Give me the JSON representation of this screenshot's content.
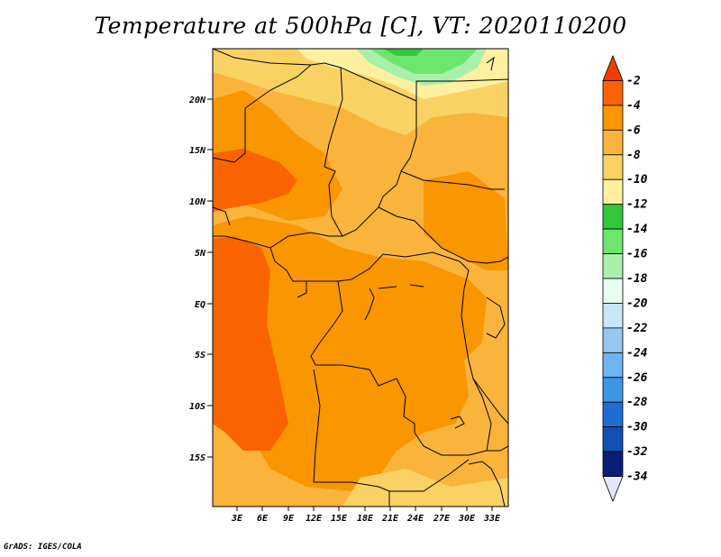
{
  "title": "Temperature at 500hPa [C], VT: 2020110200",
  "footer": "GrADS: IGES/COLA",
  "map": {
    "lat_labels": [
      "20N",
      "15N",
      "10N",
      "5N",
      "EQ",
      "5S",
      "10S",
      "15S"
    ],
    "lon_labels": [
      "3E",
      "6E",
      "9E",
      "12E",
      "15E",
      "18E",
      "21E",
      "24E",
      "27E",
      "30E",
      "33E"
    ]
  },
  "colorbar": {
    "labels": [
      "-2",
      "-4",
      "-6",
      "-8",
      "-10",
      "-12",
      "-14",
      "-16",
      "-18",
      "-20",
      "-22",
      "-24",
      "-26",
      "-28",
      "-30",
      "-32",
      "-34"
    ],
    "colors": [
      "#f03c00",
      "#fa6400",
      "#fa9600",
      "#fab43c",
      "#fad264",
      "#fff0a0",
      "#32c83c",
      "#6ee66e",
      "#aaf0aa",
      "#e6fff0",
      "#c8e6fa",
      "#96c8f0",
      "#6eb4f0",
      "#3c96e6",
      "#1e6ed2",
      "#1450b4",
      "#0a1e78",
      "#e6e6fa"
    ]
  }
}
